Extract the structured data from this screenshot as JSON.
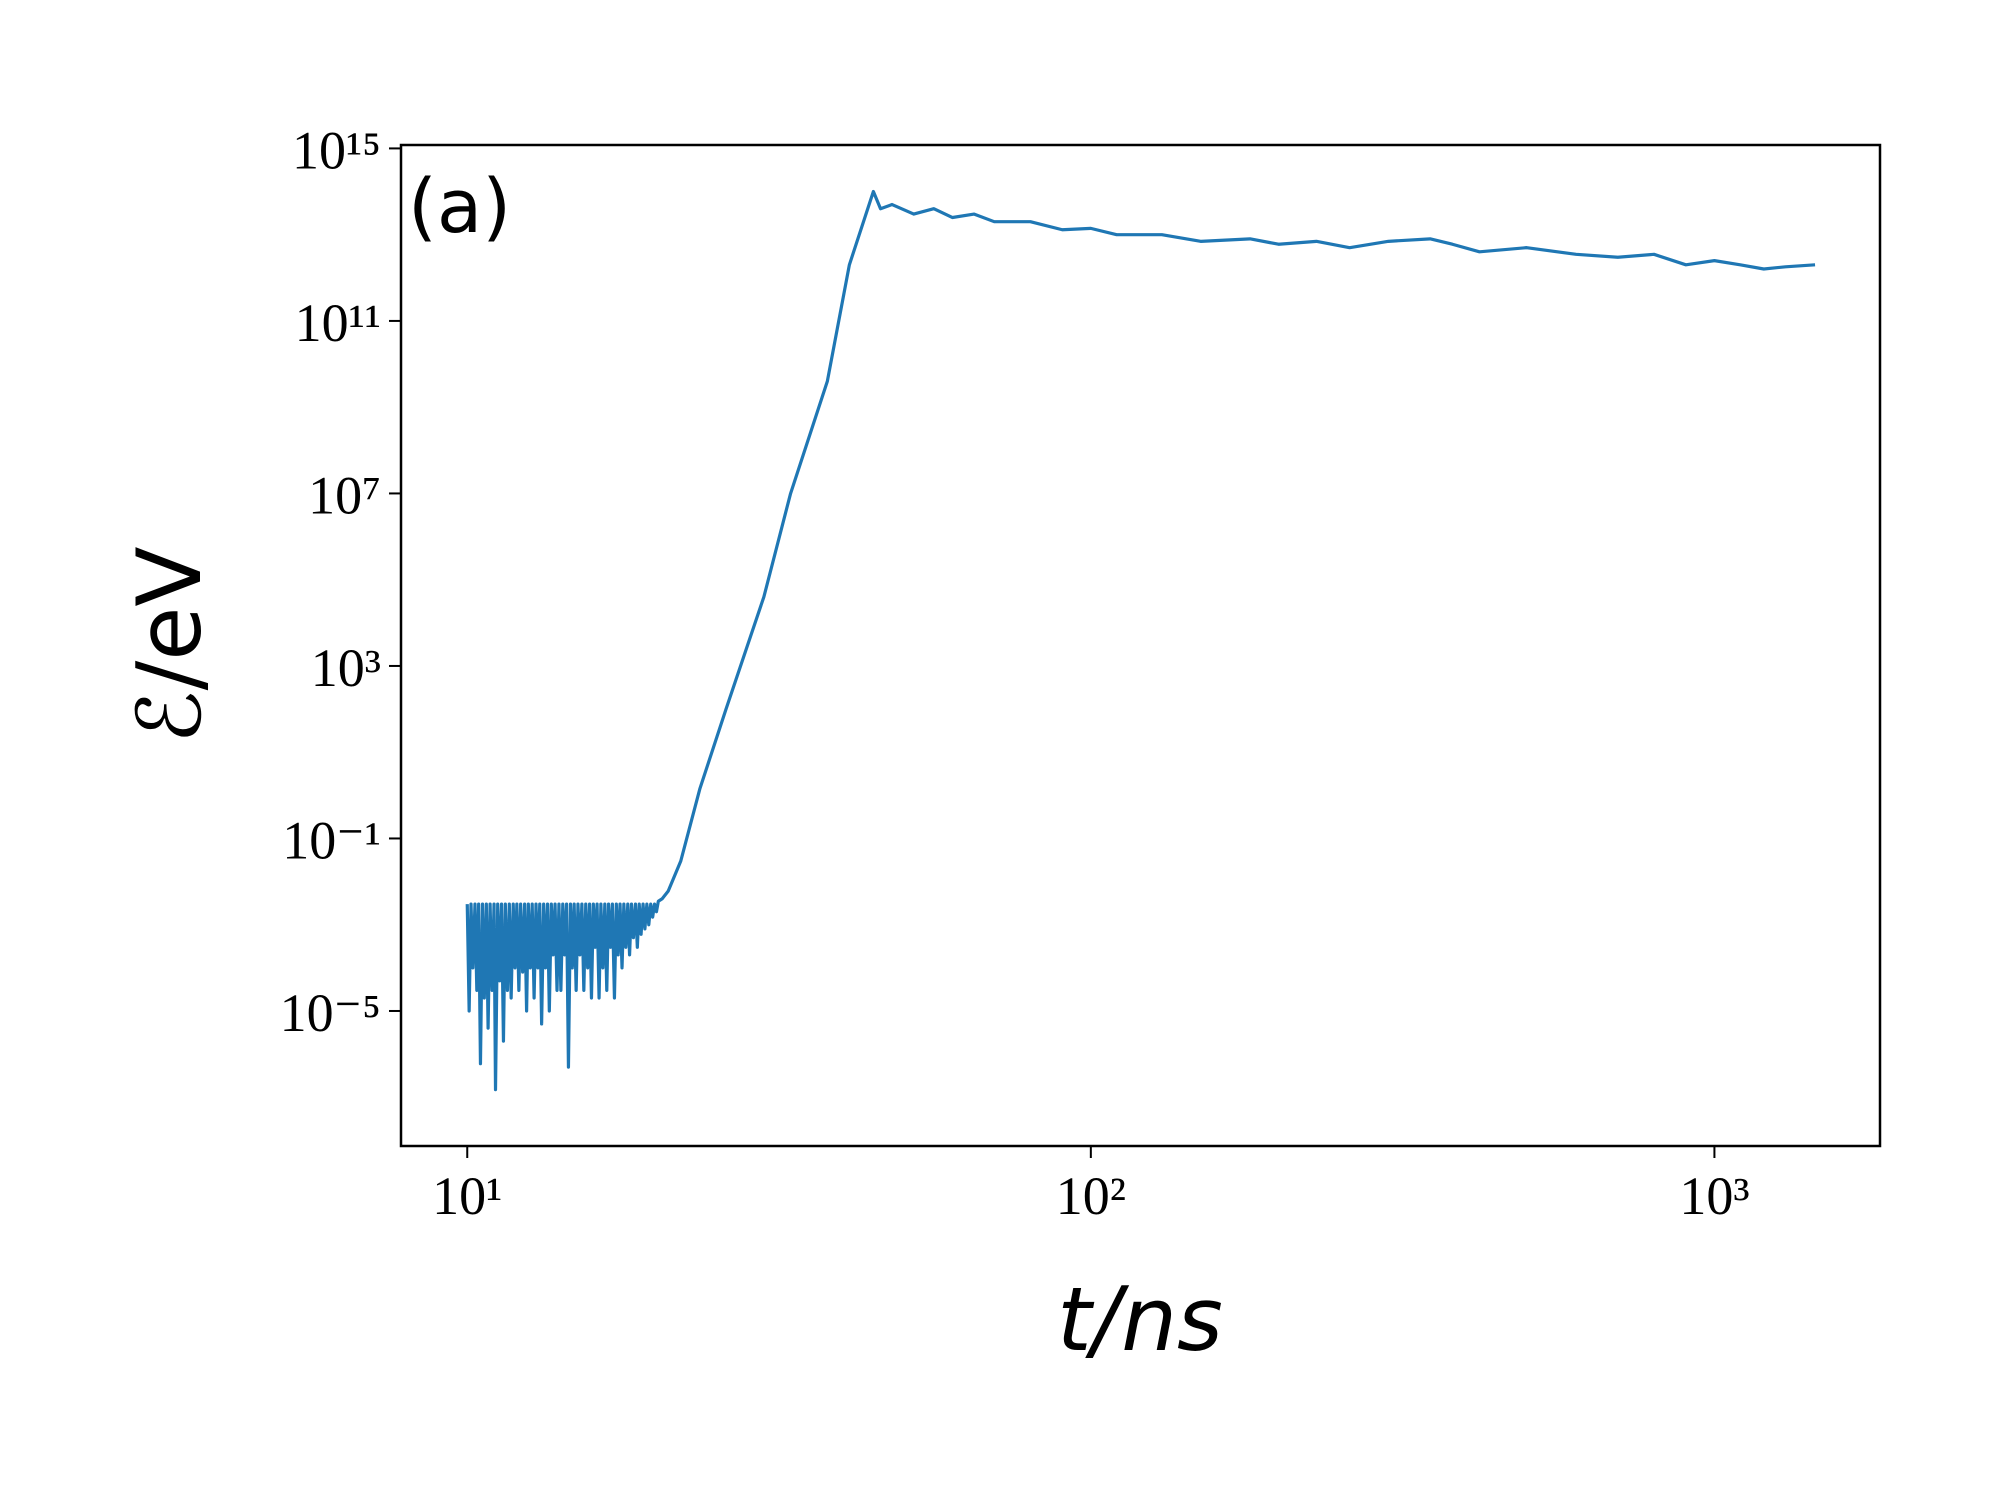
{
  "chart_data": {
    "type": "line",
    "annotation": "(a)",
    "x_label": "t/ns",
    "y_label": "ℰ/eV",
    "x_log": true,
    "y_log": true,
    "xlim": [
      7.83,
      1843
    ],
    "ylim": [
      7.4e-09,
      1200000000000000.0
    ],
    "xticks": [
      {
        "value": 10,
        "label": "10¹"
      },
      {
        "value": 100,
        "label": "10²"
      },
      {
        "value": 1000,
        "label": "10³"
      }
    ],
    "yticks": [
      {
        "value": 1e-05,
        "label": "10⁻⁵"
      },
      {
        "value": 0.1,
        "label": "10⁻¹"
      },
      {
        "value": 1000,
        "label": "10³"
      },
      {
        "value": 10000000.0,
        "label": "10⁷"
      },
      {
        "value": 100000000000.0,
        "label": "10¹¹"
      },
      {
        "value": 1000000000000000.0,
        "label": "10¹⁵"
      }
    ],
    "series": [
      {
        "color": "#1f77b4",
        "x": [
          10.0,
          10.07,
          10.14,
          10.21,
          10.29,
          10.36,
          10.43,
          10.5,
          10.58,
          10.65,
          10.73,
          10.8,
          10.88,
          10.96,
          11.04,
          11.1,
          11.19,
          11.27,
          11.35,
          11.43,
          11.51,
          11.6,
          11.68,
          11.76,
          11.85,
          11.93,
          12.01,
          12.1,
          12.18,
          12.27,
          12.36,
          12.45,
          12.53,
          12.62,
          12.71,
          12.8,
          12.89,
          12.98,
          13.07,
          13.16,
          13.26,
          13.35,
          13.45,
          13.54,
          13.64,
          13.73,
          13.83,
          13.93,
          14.03,
          14.13,
          14.23,
          14.33,
          14.43,
          14.53,
          14.64,
          14.74,
          14.84,
          14.95,
          15.05,
          15.16,
          15.27,
          15.38,
          15.49,
          15.6,
          15.71,
          15.82,
          15.93,
          16.04,
          16.15,
          16.27,
          16.38,
          16.5,
          16.62,
          16.74,
          16.85,
          16.97,
          17.09,
          17.22,
          17.34,
          17.46,
          17.58,
          17.71,
          17.83,
          17.96,
          18.09,
          18.21,
          18.34,
          18.47,
          18.61,
          18.74,
          18.87,
          19.0,
          19.14,
          19.27,
          19.41,
          19.55,
          19.69,
          19.83,
          19.97,
          20.11,
          20.25,
          20.54,
          21.0,
          22.0,
          23.6,
          26.0,
          29.9,
          33.0,
          37.8,
          41.0,
          44.8,
          46.0,
          48.0,
          52.0,
          56.0,
          60.0,
          65.0,
          70.0,
          80.0,
          90.0,
          100.0,
          110.0,
          130.0,
          150.0,
          180.0,
          200.0,
          230.0,
          260.0,
          300.0,
          350.0,
          380.0,
          420.0,
          500.0,
          600.0,
          700.0,
          800.0,
          900.0,
          1000.0,
          1100.0,
          1200.0,
          1300.0,
          1450.0
        ],
        "values": [
          0.003,
          1e-05,
          0.003,
          0.0001,
          0.003,
          3e-05,
          0.003,
          6e-07,
          0.003,
          2e-05,
          0.003,
          4e-06,
          0.003,
          3e-05,
          0.003,
          1.5e-07,
          0.003,
          5e-05,
          0.003,
          2e-06,
          0.003,
          3e-05,
          0.003,
          2e-05,
          0.003,
          0.0001,
          0.003,
          3e-05,
          0.003,
          8e-05,
          0.003,
          1e-05,
          0.003,
          0.0001,
          0.003,
          2e-05,
          0.003,
          0.0001,
          0.003,
          5e-06,
          0.003,
          0.0001,
          0.003,
          1e-05,
          0.003,
          0.0002,
          0.003,
          3e-05,
          0.003,
          3e-05,
          0.003,
          0.0002,
          0.003,
          5e-07,
          0.003,
          0.0001,
          0.003,
          3e-05,
          0.003,
          0.0002,
          0.003,
          3e-05,
          0.003,
          0.0001,
          0.003,
          2e-05,
          0.003,
          0.0003,
          0.003,
          2e-05,
          0.003,
          0.0001,
          0.003,
          3e-05,
          0.003,
          0.0003,
          0.003,
          2e-05,
          0.003,
          0.0002,
          0.003,
          0.0001,
          0.003,
          0.0003,
          0.003,
          0.0002,
          0.003,
          0.0005,
          0.003,
          0.0003,
          0.003,
          0.0006,
          0.003,
          0.0008,
          0.003,
          0.001,
          0.003,
          0.0015,
          0.003,
          0.002,
          0.0035,
          0.004,
          0.006,
          0.03,
          1.4,
          100,
          40000,
          10000000,
          4000000000,
          2000000000000,
          100000000000000,
          40000000000000,
          50000000000000,
          30000000000000,
          40000000000000,
          25000000000000,
          30000000000000,
          20000000000000,
          20000000000000,
          13000000000000,
          14000000000000,
          10000000000000,
          10000000000000,
          7000000000000,
          8000000000000,
          6000000000000,
          7000000000000,
          5000000000000,
          7000000000000,
          8000000000000,
          6000000000000,
          4000000000000,
          5000000000000,
          3500000000000,
          3000000000000,
          3500000000000,
          2000000000000,
          2500000000000,
          2000000000000,
          1600000000000,
          1800000000000,
          2000000000000
        ]
      }
    ]
  }
}
